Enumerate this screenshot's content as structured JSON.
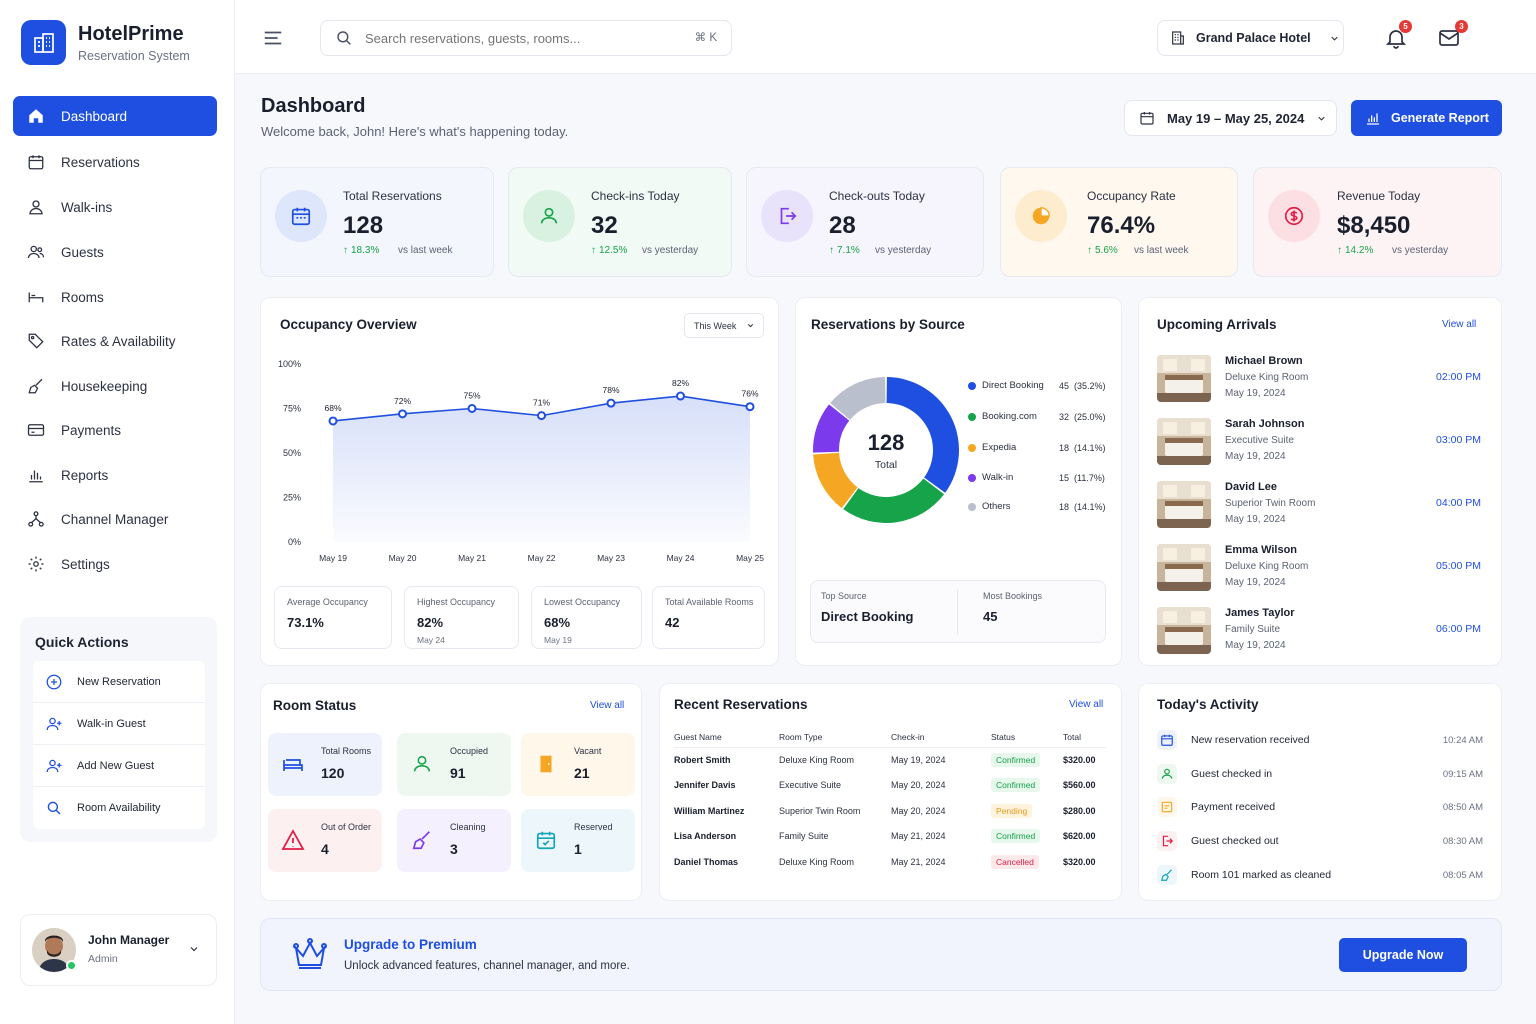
{
  "brand": {
    "name": "HotelPrime",
    "subtitle": "Reservation System"
  },
  "nav": [
    {
      "label": "Dashboard",
      "icon": "home-icon",
      "active": true
    },
    {
      "label": "Reservations",
      "icon": "calendar-icon"
    },
    {
      "label": "Walk-ins",
      "icon": "user-icon"
    },
    {
      "label": "Guests",
      "icon": "users-icon"
    },
    {
      "label": "Rooms",
      "icon": "bed-icon"
    },
    {
      "label": "Rates & Availability",
      "icon": "tag-icon"
    },
    {
      "label": "Housekeeping",
      "icon": "broom-icon"
    },
    {
      "label": "Payments",
      "icon": "card-icon"
    },
    {
      "label": "Reports",
      "icon": "bar-chart-icon"
    },
    {
      "label": "Channel Manager",
      "icon": "network-icon"
    },
    {
      "label": "Settings",
      "icon": "gear-icon"
    }
  ],
  "quick_actions": {
    "title": "Quick Actions",
    "items": [
      "New Reservation",
      "Walk-in Guest",
      "Add New Guest",
      "Room Availability"
    ]
  },
  "user": {
    "name": "John Manager",
    "role": "Admin"
  },
  "header": {
    "search_placeholder": "Search reservations, guests, rooms...",
    "shortcut": "⌘ K",
    "hotel": "Grand Palace Hotel",
    "notifications": "5",
    "messages": "3"
  },
  "page": {
    "title": "Dashboard",
    "subtitle": "Welcome back, John! Here's what's happening today.",
    "date_range": "May 19 – May 25, 2024",
    "report_button": "Generate Report"
  },
  "stats": [
    {
      "label": "Total Reservations",
      "value": "128",
      "change": "18.3%",
      "compare": "vs last week"
    },
    {
      "label": "Check-ins Today",
      "value": "32",
      "change": "12.5%",
      "compare": "vs yesterday"
    },
    {
      "label": "Check-outs Today",
      "value": "28",
      "change": "7.1%",
      "compare": "vs yesterday"
    },
    {
      "label": "Occupancy Rate",
      "value": "76.4%",
      "change": "5.6%",
      "compare": "vs last week"
    },
    {
      "label": "Revenue Today",
      "value": "$8,450",
      "change": "14.2%",
      "compare": "vs yesterday"
    }
  ],
  "occupancy": {
    "title": "Occupancy Overview",
    "period": "This Week",
    "summary": [
      {
        "label": "Average Occupancy",
        "value": "73.1%",
        "sub": ""
      },
      {
        "label": "Highest Occupancy",
        "value": "82%",
        "sub": "May 24"
      },
      {
        "label": "Lowest Occupancy",
        "value": "68%",
        "sub": "May 19"
      },
      {
        "label": "Total Available Rooms",
        "value": "42",
        "sub": ""
      }
    ]
  },
  "chart_data": [
    {
      "type": "area",
      "x": [
        "May 19",
        "May 20",
        "May 21",
        "May 22",
        "May 23",
        "May 24",
        "May 25"
      ],
      "series": [
        {
          "values": [
            68,
            72,
            75,
            71,
            78,
            82,
            76
          ]
        }
      ],
      "data_labels": [
        "68%",
        "72%",
        "75%",
        "71%",
        "78%",
        "82%",
        "76%"
      ],
      "yticks": [
        "0%",
        "25%",
        "50%",
        "75%",
        "100%"
      ],
      "ylim": [
        0,
        100
      ],
      "grid": false,
      "color": "#1f4fe0"
    },
    {
      "type": "pie",
      "title": "Reservations by Source",
      "center_value": "128",
      "center_label": "Total",
      "categories": [
        "Direct Booking",
        "Booking.com",
        "Expedia",
        "Walk-in",
        "Others"
      ],
      "values": [
        45,
        32,
        18,
        15,
        18
      ],
      "percent_labels": [
        "(35.2%)",
        "(25.0%)",
        "(14.1%)",
        "(11.7%)",
        "(14.1%)"
      ],
      "colors": [
        "#1f4fe0",
        "#16a34a",
        "#f5a623",
        "#7c3aed",
        "#b9bfcc"
      ],
      "legend": "right"
    }
  ],
  "source_summary": {
    "top_label": "Top Source",
    "top_value": "Direct Booking",
    "most_label": "Most Bookings",
    "most_value": "45"
  },
  "arrivals": {
    "title": "Upcoming Arrivals",
    "view_all": "View all",
    "items": [
      {
        "name": "Michael Brown",
        "room": "Deluxe King Room",
        "date": "May 19, 2024",
        "time": "02:00 PM"
      },
      {
        "name": "Sarah Johnson",
        "room": "Executive Suite",
        "date": "May 19, 2024",
        "time": "03:00 PM"
      },
      {
        "name": "David Lee",
        "room": "Superior Twin Room",
        "date": "May 19, 2024",
        "time": "04:00 PM"
      },
      {
        "name": "Emma Wilson",
        "room": "Deluxe King Room",
        "date": "May 19, 2024",
        "time": "05:00 PM"
      },
      {
        "name": "James Taylor",
        "room": "Family Suite",
        "date": "May 19, 2024",
        "time": "06:00 PM"
      }
    ]
  },
  "room_status": {
    "title": "Room Status",
    "view_all": "View all",
    "items": [
      {
        "label": "Total Rooms",
        "value": "120"
      },
      {
        "label": "Occupied",
        "value": "91"
      },
      {
        "label": "Vacant",
        "value": "21"
      },
      {
        "label": "Out of Order",
        "value": "4"
      },
      {
        "label": "Cleaning",
        "value": "3"
      },
      {
        "label": "Reserved",
        "value": "1"
      }
    ]
  },
  "recent": {
    "title": "Recent Reservations",
    "view_all": "View all",
    "headers": [
      "Guest Name",
      "Room Type",
      "Check-in",
      "Status",
      "Total"
    ],
    "rows": [
      [
        "Robert Smith",
        "Deluxe King Room",
        "May 19, 2024",
        "Confirmed",
        "$320.00"
      ],
      [
        "Jennifer Davis",
        "Executive Suite",
        "May 20, 2024",
        "Confirmed",
        "$560.00"
      ],
      [
        "William Martinez",
        "Superior Twin Room",
        "May 20, 2024",
        "Pending",
        "$280.00"
      ],
      [
        "Lisa Anderson",
        "Family Suite",
        "May 21, 2024",
        "Confirmed",
        "$620.00"
      ],
      [
        "Daniel Thomas",
        "Deluxe King Room",
        "May 21, 2024",
        "Cancelled",
        "$320.00"
      ]
    ]
  },
  "activity": {
    "title": "Today's Activity",
    "items": [
      {
        "text": "New reservation received",
        "time": "10:24 AM"
      },
      {
        "text": "Guest checked in",
        "time": "09:15 AM"
      },
      {
        "text": "Payment received",
        "time": "08:50 AM"
      },
      {
        "text": "Guest checked out",
        "time": "08:30 AM"
      },
      {
        "text": "Room 101 marked as cleaned",
        "time": "08:05 AM"
      }
    ]
  },
  "upgrade": {
    "title": "Upgrade to Premium",
    "subtitle": "Unlock advanced features, channel manager, and more.",
    "button": "Upgrade Now"
  }
}
